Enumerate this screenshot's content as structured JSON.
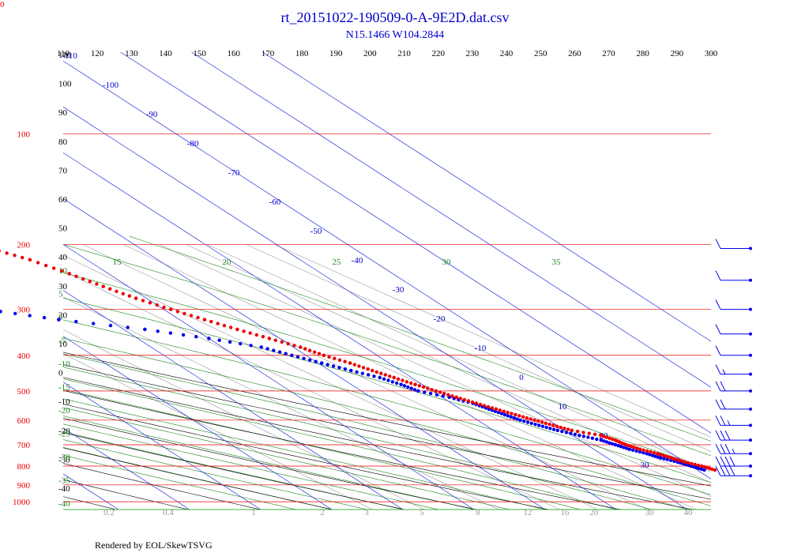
{
  "title": "rt_20151022-190509-0-A-9E2D.dat.csv",
  "subtitle": "N15.1466 W104.2844",
  "footer": "Rendered by EOL/SkewTSVG",
  "corner_label": "0",
  "colors": {
    "temperature": "#ee0000",
    "dewpoint": "#0000ee",
    "isobar": "#ee0000",
    "isotherm": "#2233dd",
    "dry_adiabat": "#000000",
    "moist_adiabat": "#228822",
    "mixing_ratio": "#999999",
    "title": "#0000cc",
    "wind_barb": "#0000ee"
  },
  "chart_data": {
    "type": "skew-t",
    "title": "rt_20151022-190509-0-A-9E2D.dat.csv",
    "subtitle": "N15.1466 W104.2844",
    "pressure_levels": [
      100,
      200,
      300,
      400,
      500,
      600,
      700,
      800,
      900,
      1000
    ],
    "theta_labels": [
      110,
      120,
      130,
      140,
      150,
      160,
      170,
      180,
      190,
      200,
      210,
      220,
      230,
      240,
      250,
      260,
      270,
      280,
      290,
      300
    ],
    "isotherm_labels": [
      -110,
      -100,
      -90,
      -80,
      -70,
      -60,
      -50,
      -40,
      -30,
      -20,
      -10,
      0,
      10,
      20,
      30
    ],
    "altitude_labels": [
      110,
      100,
      90,
      80,
      70,
      60,
      50,
      40,
      30,
      20,
      10,
      0,
      -10,
      -20,
      -30,
      -40
    ],
    "moist_labels_top": [
      15,
      20,
      25,
      30,
      35
    ],
    "moist_labels_left": [
      10,
      5,
      0,
      -5,
      -10,
      -15,
      -20,
      -25,
      -30,
      -35,
      -40
    ],
    "mixing_ratio_labels": [
      "0.2",
      "0.4",
      "1",
      "2",
      "3",
      "5",
      "8",
      "12",
      "16",
      "20",
      "30",
      "40"
    ],
    "temperature": [
      {
        "p": 205,
        "t": -31
      },
      {
        "p": 220,
        "t": -28
      },
      {
        "p": 240,
        "t": -25.5
      },
      {
        "p": 260,
        "t": -23.5
      },
      {
        "p": 280,
        "t": -21.5
      },
      {
        "p": 300,
        "t": -19
      },
      {
        "p": 320,
        "t": -16.5
      },
      {
        "p": 340,
        "t": -14
      },
      {
        "p": 360,
        "t": -11.5
      },
      {
        "p": 380,
        "t": -9
      },
      {
        "p": 400,
        "t": -7.5
      },
      {
        "p": 420,
        "t": -5.5
      },
      {
        "p": 440,
        "t": -4
      },
      {
        "p": 460,
        "t": -2.5
      },
      {
        "p": 480,
        "t": -1
      },
      {
        "p": 500,
        "t": 0.5
      },
      {
        "p": 520,
        "t": 2
      },
      {
        "p": 540,
        "t": 3.5
      },
      {
        "p": 560,
        "t": 5
      },
      {
        "p": 580,
        "t": 6.5
      },
      {
        "p": 600,
        "t": 8
      },
      {
        "p": 620,
        "t": 9.5
      },
      {
        "p": 640,
        "t": 11
      },
      {
        "p": 660,
        "t": 14
      },
      {
        "p": 680,
        "t": 15
      },
      {
        "p": 700,
        "t": 15.5
      },
      {
        "p": 720,
        "t": 16.5
      },
      {
        "p": 740,
        "t": 18
      },
      {
        "p": 760,
        "t": 19
      },
      {
        "p": 780,
        "t": 20
      },
      {
        "p": 800,
        "t": 21.5
      },
      {
        "p": 820,
        "t": 22.5
      }
    ],
    "dewpoint": [
      {
        "p": 205,
        "t": -76
      },
      {
        "p": 220,
        "t": -73
      },
      {
        "p": 240,
        "t": -66
      },
      {
        "p": 260,
        "t": -60
      },
      {
        "p": 280,
        "t": -53
      },
      {
        "p": 300,
        "t": -45
      },
      {
        "p": 320,
        "t": -37
      },
      {
        "p": 340,
        "t": -27
      },
      {
        "p": 360,
        "t": -20
      },
      {
        "p": 380,
        "t": -14.5
      },
      {
        "p": 400,
        "t": -12
      },
      {
        "p": 420,
        "t": -9.5
      },
      {
        "p": 440,
        "t": -7
      },
      {
        "p": 460,
        "t": -4.5
      },
      {
        "p": 480,
        "t": -3
      },
      {
        "p": 500,
        "t": -2
      },
      {
        "p": 520,
        "t": 1
      },
      {
        "p": 540,
        "t": 3
      },
      {
        "p": 560,
        "t": 4
      },
      {
        "p": 580,
        "t": 5
      },
      {
        "p": 600,
        "t": 6
      },
      {
        "p": 620,
        "t": 7.5
      },
      {
        "p": 640,
        "t": 9
      },
      {
        "p": 660,
        "t": 11
      },
      {
        "p": 680,
        "t": 13
      },
      {
        "p": 700,
        "t": 14
      },
      {
        "p": 720,
        "t": 15
      },
      {
        "p": 740,
        "t": 16.5
      },
      {
        "p": 760,
        "t": 17.5
      },
      {
        "p": 780,
        "t": 19
      },
      {
        "p": 800,
        "t": 20
      },
      {
        "p": 820,
        "t": 21
      }
    ],
    "wind_barbs": [
      {
        "p": 205,
        "speed": 10,
        "dir": 90
      },
      {
        "p": 250,
        "speed": 10,
        "dir": 90
      },
      {
        "p": 300,
        "speed": 10,
        "dir": 90
      },
      {
        "p": 350,
        "speed": 10,
        "dir": 90
      },
      {
        "p": 400,
        "speed": 10,
        "dir": 90
      },
      {
        "p": 450,
        "speed": 15,
        "dir": 90
      },
      {
        "p": 500,
        "speed": 20,
        "dir": 90
      },
      {
        "p": 560,
        "speed": 20,
        "dir": 90
      },
      {
        "p": 620,
        "speed": 25,
        "dir": 90
      },
      {
        "p": 680,
        "speed": 30,
        "dir": 90
      },
      {
        "p": 740,
        "speed": 35,
        "dir": 90
      },
      {
        "p": 800,
        "speed": 40,
        "dir": 90
      },
      {
        "p": 850,
        "speed": 40,
        "dir": 90
      }
    ]
  }
}
